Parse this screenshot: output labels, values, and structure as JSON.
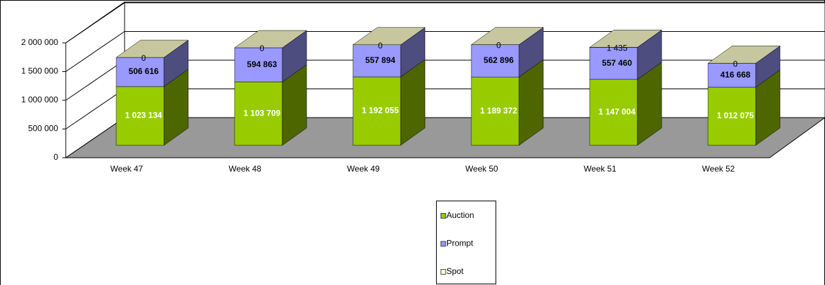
{
  "chart_data": {
    "type": "bar3d_stacked",
    "categories": [
      "Week 47",
      "Week 48",
      "Week 49",
      "Week 50",
      "Week 51",
      "Week 52"
    ],
    "series": [
      {
        "name": "Auction",
        "color": "#99cc00",
        "values": [
          1023134,
          1103709,
          1192055,
          1189372,
          1147004,
          1012075
        ],
        "value_labels": [
          "1 023 134",
          "1 103 709",
          "1 192 055",
          "1 189 372",
          "1 147 004",
          "1 012 075"
        ]
      },
      {
        "name": "Prompt",
        "color": "#9999ff",
        "values": [
          506616,
          594863,
          557894,
          562896,
          557460,
          416668
        ],
        "value_labels": [
          "506 616",
          "594 863",
          "557 894",
          "562 896",
          "557 460",
          "416 668"
        ]
      },
      {
        "name": "Spot",
        "color": "#ffffcc",
        "values": [
          0,
          0,
          0,
          0,
          1435,
          0
        ],
        "value_labels": [
          "0",
          "0",
          "0",
          "0",
          "1 435",
          "0"
        ]
      }
    ],
    "ylim": [
      0,
      2000000
    ],
    "yticks": [
      0,
      {
        "value": 500000,
        "label": "500 000"
      },
      {
        "value": 1000000,
        "label": "1 000 000"
      },
      {
        "value": 1500000,
        "label": "1 500 000"
      },
      {
        "value": 2000000,
        "label": "2 000 000"
      }
    ],
    "grid": true,
    "legend": "bottom"
  }
}
